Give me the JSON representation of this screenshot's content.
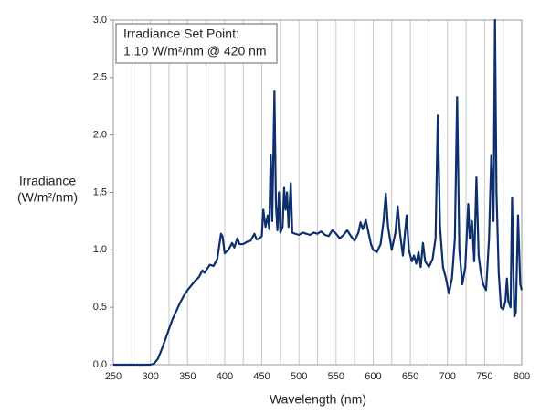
{
  "chart_data": {
    "type": "line",
    "ylabel_lines": [
      "Irradiance",
      "(W/m²/nm)"
    ],
    "xlabel": "Wavelength (nm)",
    "annotation_lines": [
      "Irradiance Set Point:",
      "1.10 W/m²/nm @ 420 nm"
    ],
    "xlim": [
      250,
      800
    ],
    "ylim": [
      0,
      3
    ],
    "xticks": [
      250,
      300,
      350,
      400,
      450,
      500,
      550,
      600,
      650,
      700,
      750,
      800
    ],
    "xminorticks": [
      275,
      325,
      375,
      425,
      475,
      525,
      575,
      625,
      675,
      725,
      775
    ],
    "yticks": [
      {
        "value": 0,
        "label": "0.0"
      },
      0.5,
      {
        "value": 1,
        "label": "1.0"
      },
      1.5,
      {
        "value": 2,
        "label": "2.0"
      },
      2.5,
      {
        "value": 3,
        "label": "3.0"
      }
    ],
    "grid": true,
    "x": [
      250,
      275,
      300,
      305,
      310,
      315,
      320,
      325,
      330,
      335,
      340,
      345,
      350,
      355,
      360,
      365,
      370,
      373,
      375,
      380,
      385,
      390,
      393,
      395,
      397,
      400,
      405,
      410,
      413,
      417,
      420,
      425,
      430,
      435,
      440,
      443,
      447,
      450,
      452,
      455,
      458,
      460,
      462,
      464,
      467,
      469,
      471,
      473,
      475,
      478,
      480,
      482,
      484,
      486,
      489,
      491,
      495,
      500,
      505,
      510,
      515,
      520,
      525,
      530,
      535,
      540,
      545,
      550,
      555,
      560,
      565,
      570,
      575,
      580,
      583,
      586,
      590,
      593,
      597,
      600,
      605,
      610,
      614,
      617,
      620,
      625,
      630,
      633,
      636,
      640,
      645,
      648,
      652,
      655,
      658,
      661,
      664,
      667,
      670,
      675,
      680,
      684,
      687,
      690,
      694,
      698,
      702,
      706,
      710,
      713,
      716,
      720,
      724,
      728,
      730,
      733,
      736,
      739,
      742,
      745,
      748,
      752,
      756,
      759,
      762,
      764,
      766,
      769,
      772,
      775,
      778,
      780,
      782,
      785,
      787,
      790,
      792,
      795,
      798,
      800
    ],
    "series": [
      {
        "name": "Irradiance",
        "color": "#0d2f6e",
        "values": [
          0,
          0,
          0,
          0.01,
          0.05,
          0.13,
          0.22,
          0.31,
          0.4,
          0.47,
          0.54,
          0.6,
          0.65,
          0.69,
          0.73,
          0.76,
          0.82,
          0.8,
          0.82,
          0.87,
          0.86,
          0.92,
          1.05,
          1.14,
          1.12,
          0.97,
          1.0,
          1.06,
          1.02,
          1.1,
          1.05,
          1.05,
          1.07,
          1.08,
          1.14,
          1.09,
          1.1,
          1.12,
          1.35,
          1.2,
          1.3,
          1.18,
          1.83,
          1.25,
          2.38,
          1.4,
          1.17,
          1.5,
          1.15,
          1.2,
          1.54,
          1.35,
          1.5,
          1.2,
          1.58,
          1.15,
          1.14,
          1.13,
          1.15,
          1.14,
          1.13,
          1.15,
          1.14,
          1.16,
          1.13,
          1.12,
          1.17,
          1.14,
          1.1,
          1.13,
          1.17,
          1.12,
          1.08,
          1.15,
          1.24,
          1.18,
          1.26,
          1.17,
          1.05,
          1.0,
          0.98,
          1.05,
          1.25,
          1.49,
          1.2,
          1.0,
          1.15,
          1.38,
          1.15,
          0.95,
          1.3,
          1.0,
          0.9,
          0.95,
          0.88,
          0.98,
          0.85,
          1.06,
          0.9,
          0.85,
          0.92,
          1.1,
          2.17,
          1.2,
          0.85,
          0.75,
          0.62,
          0.75,
          1.1,
          2.33,
          1.0,
          0.7,
          0.85,
          1.4,
          1.1,
          1.25,
          0.9,
          1.63,
          0.95,
          0.8,
          0.7,
          0.65,
          1.1,
          1.82,
          1.25,
          3.0,
          1.5,
          0.8,
          0.5,
          0.48,
          0.55,
          0.75,
          0.55,
          0.5,
          1.45,
          0.42,
          0.45,
          1.3,
          0.7,
          0.65
        ]
      }
    ]
  }
}
